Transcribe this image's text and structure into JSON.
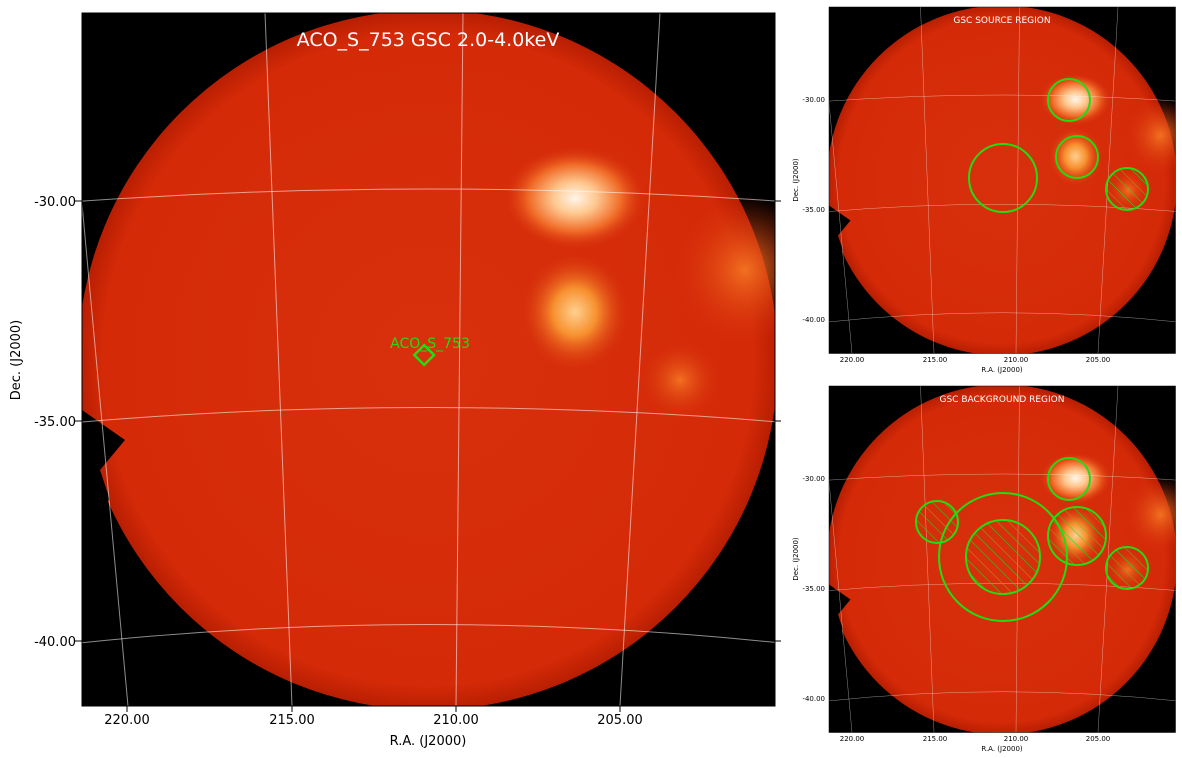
{
  "main": {
    "title": "ACO_S_753 GSC 2.0-4.0keV",
    "xlabel": "R.A. (J2000)",
    "ylabel": "Dec. (J2000)",
    "xtick_labels": [
      "220.00",
      "215.00",
      "210.00",
      "205.00"
    ],
    "ytick_labels": [
      "-30.00",
      "-35.00",
      "-40.00"
    ],
    "source_label": "ACO_S_753"
  },
  "panels": [
    {
      "title": "GSC SOURCE REGION",
      "xlabel": "R.A. (J2000)",
      "ylabel": "Dec. (J2000)",
      "xtick_labels": [
        "220.00",
        "215.00",
        "210.00",
        "205.00"
      ],
      "ytick_labels": [
        "-30.00",
        "-35.00",
        "-40.00"
      ]
    },
    {
      "title": "GSC BACKGROUND REGION",
      "xlabel": "R.A. (J2000)",
      "ylabel": "Dec. (J2000)",
      "xtick_labels": [
        "220.00",
        "215.00",
        "210.00",
        "205.00"
      ],
      "ytick_labels": [
        "-30.00",
        "-35.00",
        "-40.00"
      ]
    }
  ]
}
